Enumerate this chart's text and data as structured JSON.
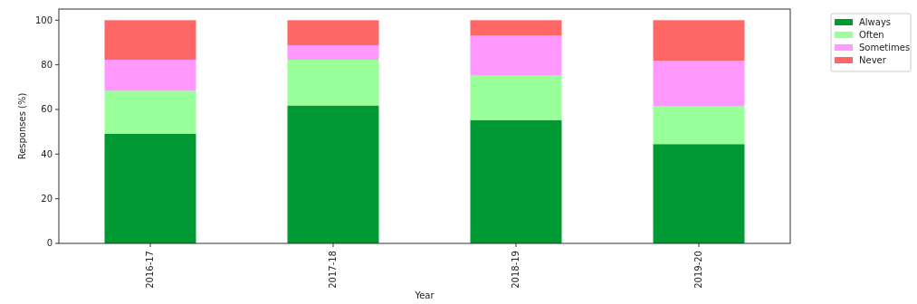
{
  "chart_data": {
    "type": "bar",
    "stacked": true,
    "xlabel": "Year",
    "ylabel": "Responses (%)",
    "categories": [
      "2016-17",
      "2017-18",
      "2018-19",
      "2019-20"
    ],
    "ylim": [
      0,
      105
    ],
    "yticks": [
      0,
      20,
      40,
      60,
      80,
      100
    ],
    "legend": "top right",
    "series": [
      {
        "name": "Always",
        "color": "#009933",
        "values": [
          49.1,
          61.8,
          55.3,
          44.5
        ]
      },
      {
        "name": "Often",
        "color": "#99ff99",
        "values": [
          19.3,
          20.5,
          20.1,
          16.9
        ]
      },
      {
        "name": "Sometimes",
        "color": "#ff99ff",
        "values": [
          13.9,
          6.5,
          17.7,
          20.5
        ]
      },
      {
        "name": "Never",
        "color": "#ff6666",
        "values": [
          17.7,
          11.2,
          6.9,
          18.1
        ]
      }
    ]
  }
}
